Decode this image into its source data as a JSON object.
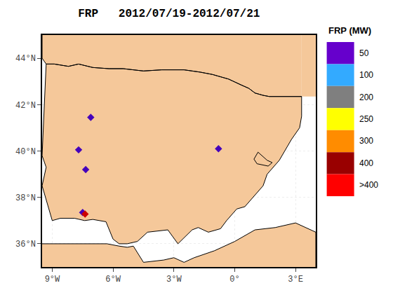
{
  "chart_data": {
    "type": "scatter",
    "title": "FRP   2012/07/19-2012/07/21",
    "xlim": [
      -9.5,
      4.0
    ],
    "ylim": [
      35.0,
      45.0
    ],
    "xticks": [
      {
        "value": -9,
        "label": "9°W"
      },
      {
        "value": -6,
        "label": "6°W"
      },
      {
        "value": -3,
        "label": "3°W"
      },
      {
        "value": 0,
        "label": "0°"
      },
      {
        "value": 3,
        "label": "3°E"
      }
    ],
    "yticks": [
      {
        "value": 36,
        "label": "36°N"
      },
      {
        "value": 38,
        "label": "38°N"
      },
      {
        "value": 40,
        "label": "40°N"
      },
      {
        "value": 42,
        "label": "42°N"
      },
      {
        "value": 44,
        "label": "44°N"
      }
    ],
    "grid": true,
    "legend": "right",
    "legend_title": "FRP (MW)",
    "legend_entries": [
      {
        "name": "50",
        "color": "#6600CC"
      },
      {
        "name": "100",
        "color": "#33AAFF"
      },
      {
        "name": "200",
        "color": "#7F7F7F"
      },
      {
        "name": "250",
        "color": "#FFFF00"
      },
      {
        "name": "300",
        "color": "#FF8C00"
      },
      {
        "name": "400",
        "color": "#990000"
      },
      {
        "name": ">400",
        "color": "#FF0000"
      }
    ],
    "series": [
      {
        "type": "area",
        "color": "#F5C89A",
        "x": [
          3.3,
          3.3,
          -9.5,
          -9.5,
          -9.3,
          -8.9,
          -8.2,
          -7.7,
          -7.0,
          -6.2,
          -5.5,
          -4.5,
          -3.6,
          -2.5,
          -1.7,
          -1.1,
          -0.3,
          0.3,
          0.7,
          1.0,
          1.4,
          1.7,
          3.3
        ],
        "values": [
          42.35,
          45.0,
          45.0,
          44.0,
          43.75,
          43.75,
          43.65,
          43.75,
          43.6,
          43.55,
          43.55,
          43.45,
          43.5,
          43.5,
          43.4,
          43.3,
          43.1,
          42.85,
          42.7,
          42.5,
          42.4,
          42.35,
          42.35
        ]
      },
      {
        "type": "area",
        "color": "#F5C89A",
        "x": [
          -9.4,
          -9.3,
          -8.9,
          -8.2,
          -7.7,
          -7.0,
          -6.2,
          -5.5,
          -4.5,
          -3.6,
          -2.5,
          -1.7,
          -1.1,
          -0.3,
          0.3,
          0.7,
          1.0,
          1.4,
          1.7,
          3.3,
          3.3,
          3.2,
          2.8,
          2.2,
          1.6,
          1.4,
          0.5,
          0.1,
          -0.4,
          -0.7,
          -1.3,
          -1.8,
          -2.1,
          -2.8,
          -3.3,
          -4.3,
          -4.8,
          -5.3,
          -5.7,
          -6.0,
          -6.35,
          -7.0,
          -7.4,
          -7.9,
          -8.6,
          -9.0,
          -9.5,
          -9.3,
          -9.5,
          -9.45,
          -9.4
        ],
        "values": [
          41.8,
          43.75,
          43.75,
          43.65,
          43.75,
          43.6,
          43.55,
          43.55,
          43.45,
          43.5,
          43.5,
          43.4,
          43.3,
          43.1,
          42.85,
          42.7,
          42.5,
          42.4,
          42.35,
          42.35,
          41.5,
          41.0,
          40.5,
          39.6,
          39.0,
          38.5,
          37.6,
          37.5,
          37.0,
          36.65,
          36.5,
          36.7,
          36.6,
          36.0,
          36.6,
          36.5,
          36.1,
          36.0,
          36.0,
          36.2,
          36.95,
          37.05,
          37.0,
          37.1,
          37.1,
          37.0,
          38.5,
          39.3,
          39.8,
          40.6,
          41.8
        ]
      },
      {
        "type": "area",
        "color": "#F5C89A",
        "x": [
          1.15,
          1.6,
          1.85,
          1.65,
          1.1,
          0.95,
          1.15
        ],
        "values": [
          39.95,
          39.6,
          39.5,
          39.35,
          39.45,
          39.65,
          39.95
        ]
      },
      {
        "type": "area",
        "color": "#F5C89A",
        "x": [
          -9.5,
          4.0,
          4.0,
          3.0,
          2.0,
          1.0,
          0.0,
          -1.0,
          -2.0,
          -2.5,
          -3.0,
          -3.5,
          -4.5,
          -5.0,
          -5.3,
          -5.7,
          -6.0,
          -6.3,
          -9.5,
          -9.5
        ],
        "values": [
          35.0,
          35.0,
          36.5,
          36.9,
          36.7,
          36.6,
          36.1,
          35.7,
          35.4,
          35.2,
          35.4,
          35.3,
          35.2,
          35.9,
          35.85,
          35.9,
          35.95,
          36.0,
          36.0,
          35.0
        ]
      },
      {
        "type": "area",
        "color": "#F5C89A",
        "x": [
          3.3,
          4.0,
          4.0,
          3.3,
          3.3
        ],
        "values": [
          42.35,
          42.35,
          45.0,
          45.0,
          42.35
        ]
      },
      {
        "type": "line",
        "color": "#000000",
        "x": [
          -9.5,
          -9.5,
          -9.3,
          -8.9,
          -8.2,
          -7.7,
          -7.0,
          -6.2,
          -5.5,
          -4.5,
          -3.6,
          -2.5,
          -1.7,
          -1.1,
          -0.3,
          0.3,
          0.7,
          1.0,
          1.4,
          1.7,
          3.3
        ],
        "values": [
          45.0,
          44.0,
          43.75,
          43.75,
          43.65,
          43.75,
          43.6,
          43.55,
          43.55,
          43.45,
          43.5,
          43.5,
          43.4,
          43.3,
          43.1,
          42.85,
          42.7,
          42.5,
          42.4,
          42.35,
          42.35
        ]
      },
      {
        "type": "line",
        "color": "#000000",
        "x": [
          -9.4,
          -9.3,
          -8.9,
          -8.2,
          -7.7,
          -7.0,
          -6.2,
          -5.5,
          -4.5,
          -3.6,
          -2.5,
          -1.7,
          -1.1,
          -0.3,
          0.3,
          0.7,
          1.0,
          1.4,
          1.7,
          3.3,
          3.3,
          3.2,
          2.8,
          2.2,
          1.6,
          1.4,
          0.5,
          0.1,
          -0.4,
          -0.7,
          -1.3,
          -1.8,
          -2.1,
          -2.8,
          -3.3,
          -4.3,
          -4.8,
          -5.3,
          -5.7,
          -6.0,
          -6.35,
          -7.0,
          -7.4,
          -7.9,
          -8.6,
          -9.0,
          -9.5,
          -9.3,
          -9.5,
          -9.45,
          -9.4
        ],
        "values": [
          41.8,
          43.75,
          43.75,
          43.65,
          43.75,
          43.6,
          43.55,
          43.55,
          43.45,
          43.5,
          43.5,
          43.4,
          43.3,
          43.1,
          42.85,
          42.7,
          42.5,
          42.4,
          42.35,
          42.35,
          41.5,
          41.0,
          40.5,
          39.6,
          39.0,
          38.5,
          37.6,
          37.5,
          37.0,
          36.65,
          36.5,
          36.7,
          36.6,
          36.0,
          36.6,
          36.5,
          36.1,
          36.0,
          36.0,
          36.2,
          36.95,
          37.05,
          37.0,
          37.1,
          37.1,
          37.0,
          38.5,
          39.3,
          39.8,
          40.6,
          41.8
        ]
      },
      {
        "type": "line",
        "color": "#000000",
        "x": [
          1.15,
          1.6,
          1.85,
          1.65,
          1.1,
          0.95,
          1.15
        ],
        "values": [
          39.95,
          39.6,
          39.5,
          39.35,
          39.45,
          39.65,
          39.95
        ]
      },
      {
        "type": "line",
        "color": "#000000",
        "x": [
          4.0,
          4.0,
          3.0,
          2.0,
          1.0,
          0.0,
          -1.0,
          -2.0,
          -2.5,
          -3.0,
          -3.5,
          -4.5,
          -5.0,
          -5.3,
          -5.7,
          -6.0,
          -6.3,
          -9.5
        ],
        "values": [
          35.0,
          36.5,
          36.9,
          36.7,
          36.6,
          36.1,
          35.7,
          35.4,
          35.2,
          35.4,
          35.3,
          35.2,
          35.9,
          35.85,
          35.9,
          35.95,
          36.0,
          36.0
        ]
      },
      {
        "type": "scatter",
        "marker": "diamond",
        "x": [
          -7.1,
          -7.7,
          -7.35,
          -7.5,
          -7.38,
          -0.8
        ],
        "values": [
          41.45,
          40.05,
          39.2,
          37.35,
          37.28,
          40.1
        ],
        "colors": [
          "#4400BB",
          "#4400BB",
          "#4400BB",
          "#4400BB",
          "#CC0000",
          "#4400BB"
        ]
      }
    ]
  }
}
